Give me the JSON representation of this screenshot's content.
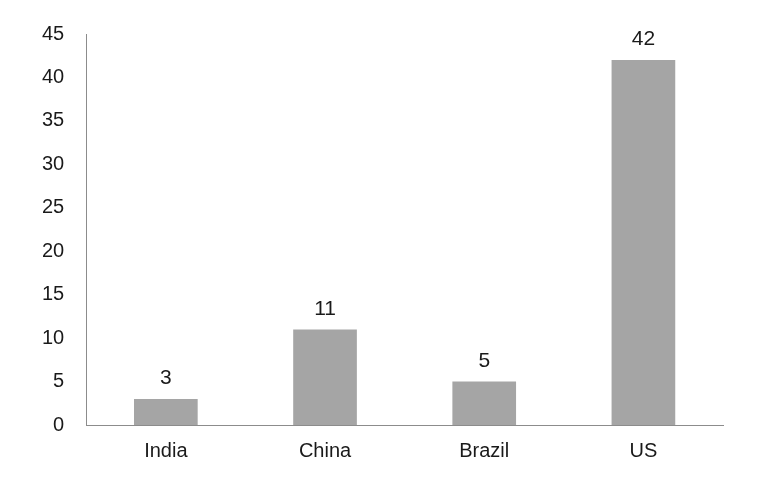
{
  "chart_data": {
    "type": "bar",
    "categories": [
      "India",
      "China",
      "Brazil",
      "US"
    ],
    "values": [
      3,
      11,
      5,
      42
    ],
    "color": "#a5a5a5",
    "ylim": [
      0,
      45
    ],
    "yticks": [
      0,
      5,
      10,
      15,
      20,
      25,
      30,
      35,
      40,
      45
    ],
    "grid": false,
    "data_labels": true
  }
}
